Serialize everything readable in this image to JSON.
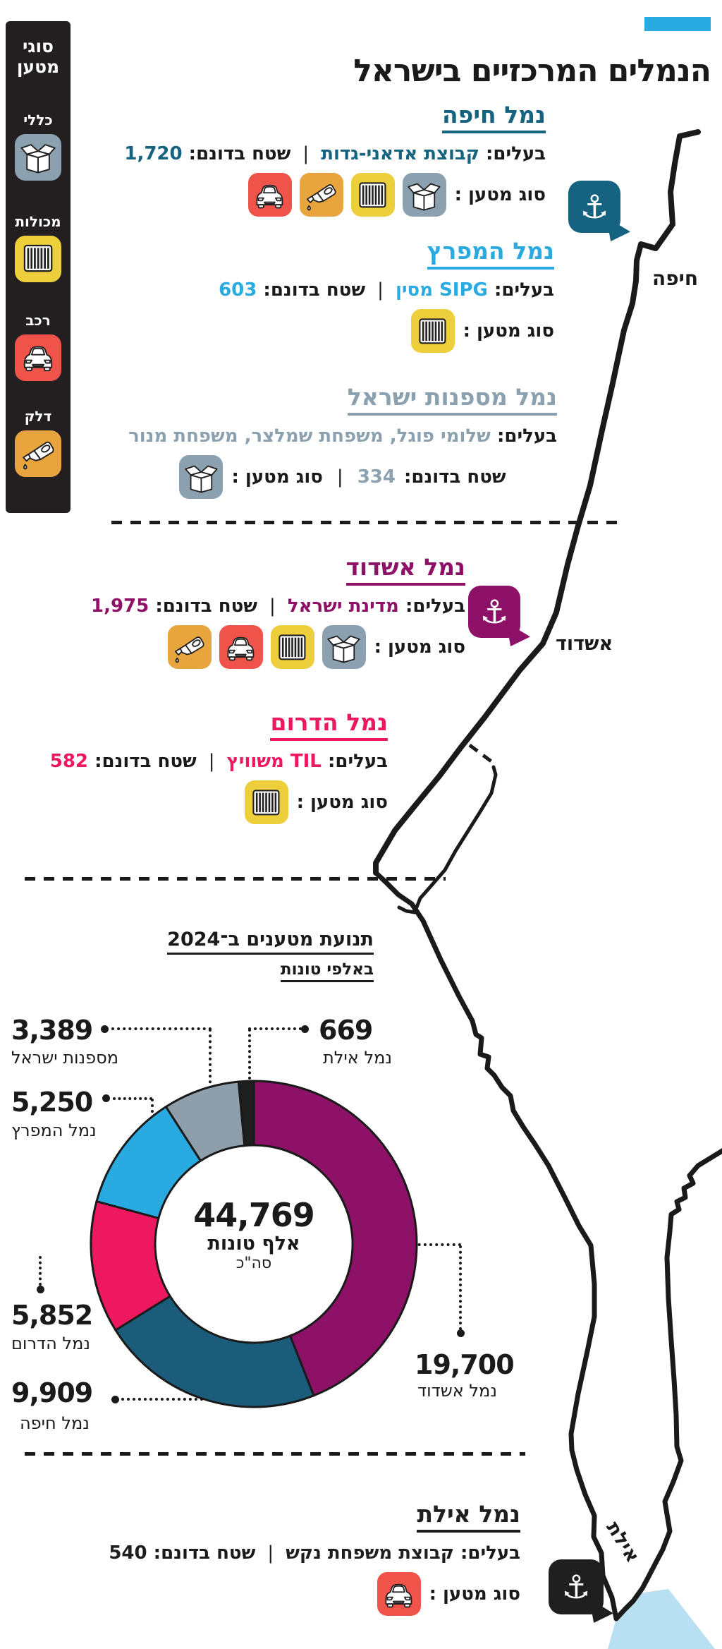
{
  "accent_color": "#29ABE2",
  "header": {
    "title": "הנמלים המרכזיים בישראל"
  },
  "legend": {
    "title": "סוגי מטען",
    "items": [
      {
        "label": "כללי",
        "icon": "box"
      },
      {
        "label": "מכולות",
        "icon": "container"
      },
      {
        "label": "רכב",
        "icon": "car"
      },
      {
        "label": "דלק",
        "icon": "fuel"
      }
    ]
  },
  "labels": {
    "owners": "בעלים:",
    "area": "שטח בדונם:",
    "cargo": "סוג מטען :",
    "separator": "|"
  },
  "cargo_colors": {
    "box": "#8CA1AF",
    "container": "#EDCF3C",
    "car": "#F0534A",
    "fuel": "#E8A43D"
  },
  "ports": [
    {
      "id": "haifa",
      "name": "נמל חיפה",
      "color": "#156281",
      "owner": "קבוצת אדאני-גדות",
      "area": "1,720",
      "cargo": [
        "box",
        "container",
        "fuel",
        "car"
      ]
    },
    {
      "id": "mifratz",
      "name": "נמל המפרץ",
      "color": "#29ABE2",
      "owner": "SIPG מסין",
      "area": "603",
      "cargo": [
        "container"
      ]
    },
    {
      "id": "shipyards",
      "name": "נמל מספנות ישראל",
      "color": "#8CA1AF",
      "owner": "שלומי פוגל, משפחת שמלצר, משפחת מנור",
      "area": "334",
      "cargo": [
        "box"
      ]
    },
    {
      "id": "ashdod",
      "name": "נמל אשדוד",
      "color": "#8E1168",
      "owner": "מדינת ישראל",
      "area": "1,975",
      "cargo": [
        "box",
        "container",
        "car",
        "fuel"
      ]
    },
    {
      "id": "darom",
      "name": "נמל הדרום",
      "color": "#EE1860",
      "owner": "TIL משוויץ",
      "area": "582",
      "cargo": [
        "container"
      ]
    },
    {
      "id": "eilat",
      "name": "נמל אילת",
      "color": "#1F1F1F",
      "owner": "קבוצת משפחת נקש",
      "area": "540",
      "cargo": [
        "car"
      ]
    }
  ],
  "chart_data": {
    "type": "donut",
    "title": "תנועת מטענים ב־2024",
    "subtitle": "באלפי טונות",
    "center": {
      "value": "44,769",
      "unit": "אלף טונות",
      "note": "סה\"כ"
    },
    "total": 44769,
    "legend_position": "callouts",
    "series": [
      {
        "name": "נמל אשדוד",
        "value": 19700,
        "label": "19,700",
        "color": "#8E1168"
      },
      {
        "name": "נמל חיפה",
        "value": 9909,
        "label": "9,909",
        "color": "#1B5C7B"
      },
      {
        "name": "נמל הדרום",
        "value": 5852,
        "label": "5,852",
        "color": "#EE1860"
      },
      {
        "name": "נמל המפרץ",
        "value": 5250,
        "label": "5,250",
        "color": "#29ABE2"
      },
      {
        "name": "מספנות ישראל",
        "value": 3389,
        "label": "3,389",
        "color": "#8E9EAB"
      },
      {
        "name": "נמל אילת",
        "value": 669,
        "label": "669",
        "color": "#1F1F1F"
      }
    ]
  },
  "map": {
    "cities": [
      "חיפה",
      "אשדוד",
      "אילת"
    ],
    "anchors": [
      {
        "city": "חיפה",
        "color": "#156281"
      },
      {
        "city": "אשדוד",
        "color": "#8E1168"
      },
      {
        "city": "אילת",
        "color": "#1F1F1F"
      }
    ],
    "water_color": "#B8DFF2"
  }
}
